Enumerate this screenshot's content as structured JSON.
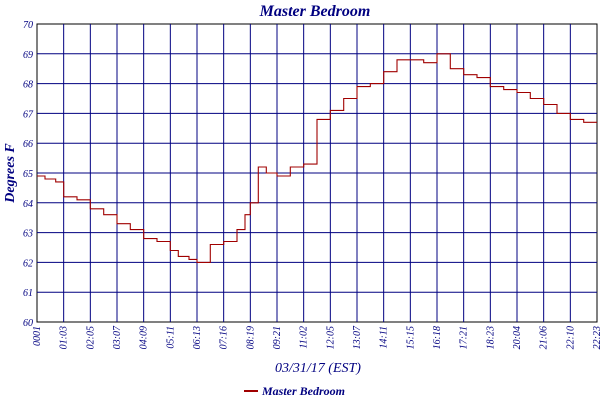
{
  "chart_data": {
    "type": "line",
    "title": "Master Bedroom",
    "xlabel": "03/31/17 (EST)",
    "ylabel": "Degrees F",
    "ylim": [
      60,
      70
    ],
    "yticks": [
      60,
      61,
      62,
      63,
      64,
      65,
      66,
      67,
      68,
      69,
      70
    ],
    "xticks": [
      "0001",
      "01:03",
      "02:05",
      "03:07",
      "04:09",
      "05:11",
      "06:13",
      "07:16",
      "08:19",
      "09:21",
      "11:02",
      "12:05",
      "13:07",
      "14:11",
      "15:15",
      "16:18",
      "17:21",
      "18:23",
      "20:04",
      "21:06",
      "22:10",
      "22:23"
    ],
    "grid": true,
    "legend_position": "bottom",
    "colors": {
      "line": "#a00000",
      "text": "#000080",
      "grid": "#000080",
      "axis": "#000000"
    },
    "series": [
      {
        "name": "Master Bedroom",
        "x": [
          0,
          0.3,
          0.7,
          1.0,
          1.5,
          2.0,
          2.5,
          3.0,
          3.5,
          4.0,
          4.5,
          5.0,
          5.3,
          5.7,
          6.0,
          6.5,
          7.0,
          7.5,
          7.8,
          8.0,
          8.3,
          8.6,
          9.0,
          9.5,
          10.0,
          10.5,
          11.0,
          11.5,
          12.0,
          12.5,
          13.0,
          13.5,
          14.0,
          14.5,
          15.0,
          15.5,
          16.0,
          16.5,
          17.0,
          17.5,
          18.0,
          18.5,
          19.0,
          19.5,
          20.0,
          20.5,
          21.0
        ],
        "y": [
          64.9,
          64.8,
          64.7,
          64.2,
          64.1,
          63.8,
          63.6,
          63.3,
          63.1,
          62.8,
          62.7,
          62.4,
          62.2,
          62.1,
          62.0,
          62.6,
          62.7,
          63.1,
          63.6,
          64.0,
          65.2,
          65.0,
          64.9,
          65.2,
          65.3,
          66.8,
          67.1,
          67.5,
          67.9,
          68.0,
          68.4,
          68.8,
          68.8,
          68.7,
          69.0,
          68.5,
          68.3,
          68.2,
          67.9,
          67.8,
          67.7,
          67.5,
          67.3,
          67.0,
          66.8,
          66.7,
          66.7
        ]
      }
    ]
  }
}
